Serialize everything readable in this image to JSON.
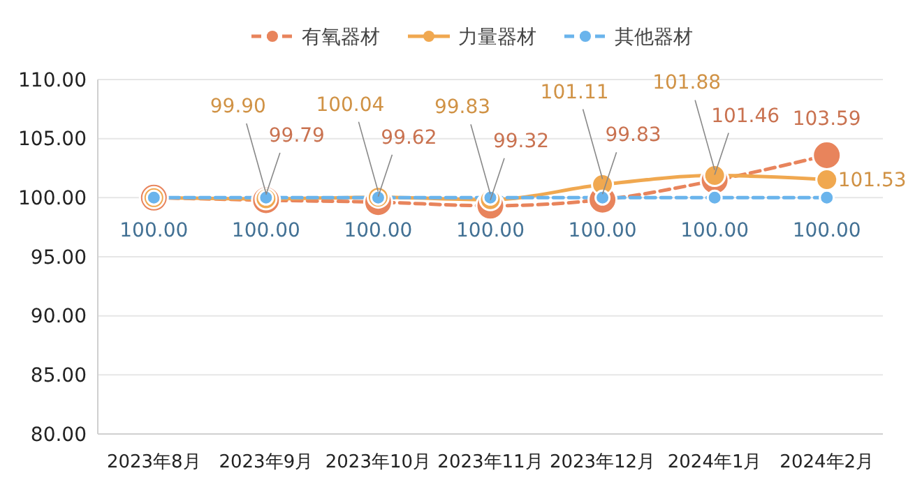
{
  "chart_data": {
    "type": "line",
    "categories": [
      "2023年8月",
      "2023年9月",
      "2023年10月",
      "2023年11月",
      "2023年12月",
      "2024年1月",
      "2024年2月"
    ],
    "ylim": [
      80,
      110
    ],
    "yticks": [
      {
        "value": 80,
        "label": "80.00"
      },
      {
        "value": 85,
        "label": "85.00"
      },
      {
        "value": 90,
        "label": "90.00"
      },
      {
        "value": 95,
        "label": "95.00"
      },
      {
        "value": 100,
        "label": "100.00"
      },
      {
        "value": 105,
        "label": "105.00"
      },
      {
        "value": 110,
        "label": "110.00"
      }
    ],
    "grid": "y",
    "legend": "top",
    "marker": "circle",
    "series": [
      {
        "name": "有氧器材",
        "color": "#e8845c",
        "line_style": "dashed",
        "values": [
          100,
          99.79,
          99.62,
          99.32,
          99.83,
          101.46,
          103.59
        ],
        "value_labels": [
          null,
          "99.79",
          "99.62",
          "99.32",
          "99.83",
          "101.46",
          "103.59"
        ]
      },
      {
        "name": "力量器材",
        "color": "#f0a850",
        "line_style": "solid",
        "values": [
          100,
          99.9,
          100.04,
          99.83,
          101.11,
          101.88,
          101.53
        ],
        "value_labels": [
          null,
          "99.90",
          "100.04",
          "99.83",
          "101.11",
          "101.88",
          "101.53"
        ]
      },
      {
        "name": "其他器材",
        "color": "#6ab4ec",
        "line_style": "dashed",
        "values": [
          100,
          100,
          100,
          100,
          100,
          100,
          100
        ],
        "value_labels": [
          "100.00",
          "100.00",
          "100.00",
          "100.00",
          "100.00",
          "100.00",
          "100.00"
        ]
      }
    ]
  }
}
